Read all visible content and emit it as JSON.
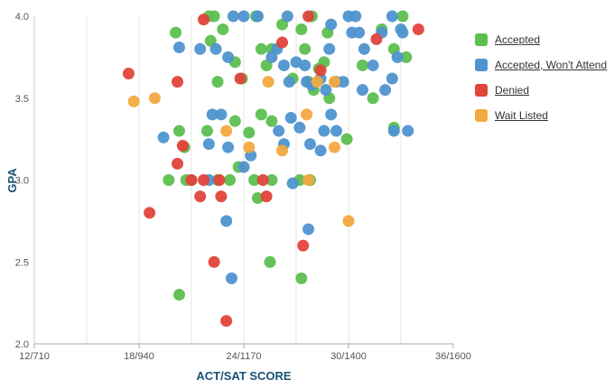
{
  "chart_data": {
    "type": "scatter",
    "xlabel": "ACT/SAT SCORE",
    "ylabel": "GPA",
    "x_ticks": [
      {
        "value": 12,
        "label": "12/710"
      },
      {
        "value": 18,
        "label": "18/940"
      },
      {
        "value": 24,
        "label": "24/1170"
      },
      {
        "value": 30,
        "label": "30/1400"
      },
      {
        "value": 36,
        "label": "36/1600"
      }
    ],
    "y_ticks": [
      {
        "value": 2.0,
        "label": "2.0"
      },
      {
        "value": 2.5,
        "label": "2.5"
      },
      {
        "value": 3.0,
        "label": "3.0"
      },
      {
        "value": 3.5,
        "label": "3.5"
      },
      {
        "value": 4.0,
        "label": "4.0"
      }
    ],
    "xlim": [
      12,
      36
    ],
    "ylim": [
      2.0,
      4.0
    ],
    "grid": "vertical",
    "legend_position": "right",
    "series": [
      {
        "name": "Accepted",
        "color": "#5cbf4f",
        "points": [
          [
            20.1,
            3.9
          ],
          [
            22.0,
            4.0
          ],
          [
            22.3,
            4.0
          ],
          [
            22.1,
            3.85
          ],
          [
            22.5,
            3.6
          ],
          [
            22.8,
            3.92
          ],
          [
            23.5,
            3.72
          ],
          [
            23.9,
            3.62
          ],
          [
            24.7,
            4.0
          ],
          [
            25.0,
            3.8
          ],
          [
            25.3,
            3.7
          ],
          [
            25.6,
            3.8
          ],
          [
            26.2,
            3.95
          ],
          [
            26.8,
            3.62
          ],
          [
            27.3,
            3.92
          ],
          [
            27.5,
            3.8
          ],
          [
            27.9,
            4.0
          ],
          [
            27.7,
            3.6
          ],
          [
            28.3,
            3.68
          ],
          [
            28.6,
            3.72
          ],
          [
            28.8,
            3.9
          ],
          [
            28.0,
            3.55
          ],
          [
            28.9,
            3.5
          ],
          [
            30.8,
            3.7
          ],
          [
            31.4,
            3.5
          ],
          [
            31.9,
            3.92
          ],
          [
            32.6,
            3.8
          ],
          [
            33.1,
            4.0
          ],
          [
            33.3,
            3.75
          ],
          [
            20.6,
            3.2
          ],
          [
            20.3,
            3.3
          ],
          [
            21.0,
            3.0
          ],
          [
            20.7,
            3.0
          ],
          [
            21.9,
            3.3
          ],
          [
            22.5,
            3.0
          ],
          [
            23.2,
            3.0
          ],
          [
            23.5,
            3.36
          ],
          [
            23.7,
            3.08
          ],
          [
            24.3,
            3.29
          ],
          [
            24.6,
            3.0
          ],
          [
            25.0,
            3.4
          ],
          [
            25.6,
            3.36
          ],
          [
            25.6,
            3.0
          ],
          [
            24.8,
            2.89
          ],
          [
            27.2,
            3.0
          ],
          [
            27.8,
            3.0
          ],
          [
            25.5,
            2.5
          ],
          [
            27.3,
            2.4
          ],
          [
            29.9,
            3.25
          ],
          [
            32.6,
            3.32
          ],
          [
            20.3,
            2.3
          ],
          [
            19.7,
            3.0
          ]
        ]
      },
      {
        "name": "Accepted, Won't Attend",
        "color": "#4f93cf",
        "points": [
          [
            20.3,
            3.81
          ],
          [
            21.5,
            3.8
          ],
          [
            22.4,
            3.8
          ],
          [
            23.1,
            3.75
          ],
          [
            23.4,
            4.0
          ],
          [
            24.0,
            4.0
          ],
          [
            24.8,
            4.0
          ],
          [
            25.6,
            3.75
          ],
          [
            25.9,
            3.8
          ],
          [
            26.3,
            3.7
          ],
          [
            26.6,
            3.6
          ],
          [
            27.0,
            3.72
          ],
          [
            27.5,
            3.7
          ],
          [
            26.5,
            4.0
          ],
          [
            27.6,
            3.6
          ],
          [
            27.9,
            3.58
          ],
          [
            28.4,
            3.62
          ],
          [
            28.7,
            3.55
          ],
          [
            28.9,
            3.8
          ],
          [
            29.0,
            3.95
          ],
          [
            29.3,
            3.6
          ],
          [
            29.7,
            3.6
          ],
          [
            30.0,
            4.0
          ],
          [
            30.2,
            3.9
          ],
          [
            30.6,
            3.9
          ],
          [
            30.9,
            3.8
          ],
          [
            31.4,
            3.7
          ],
          [
            31.9,
            3.9
          ],
          [
            32.1,
            3.55
          ],
          [
            32.5,
            3.62
          ],
          [
            32.8,
            3.75
          ],
          [
            33.0,
            3.92
          ],
          [
            33.1,
            3.9
          ],
          [
            32.5,
            4.0
          ],
          [
            30.4,
            4.0
          ],
          [
            30.8,
            3.55
          ],
          [
            19.4,
            3.26
          ],
          [
            22.0,
            3.22
          ],
          [
            22.2,
            3.4
          ],
          [
            22.7,
            3.4
          ],
          [
            23.1,
            3.2
          ],
          [
            24.0,
            3.08
          ],
          [
            24.4,
            3.15
          ],
          [
            26.0,
            3.3
          ],
          [
            26.3,
            3.22
          ],
          [
            26.7,
            3.38
          ],
          [
            27.2,
            3.32
          ],
          [
            27.8,
            3.22
          ],
          [
            28.6,
            3.3
          ],
          [
            28.4,
            3.18
          ],
          [
            29.0,
            3.4
          ],
          [
            29.3,
            3.3
          ],
          [
            32.6,
            3.3
          ],
          [
            33.4,
            3.3
          ],
          [
            22.0,
            3.0
          ],
          [
            26.8,
            2.98
          ],
          [
            23.0,
            2.75
          ],
          [
            23.3,
            2.4
          ],
          [
            27.7,
            2.7
          ]
        ]
      },
      {
        "name": "Denied",
        "color": "#e2433b",
        "points": [
          [
            17.4,
            3.65
          ],
          [
            20.2,
            3.6
          ],
          [
            21.7,
            3.98
          ],
          [
            23.8,
            3.62
          ],
          [
            26.2,
            3.84
          ],
          [
            27.7,
            4.0
          ],
          [
            28.4,
            3.67
          ],
          [
            31.6,
            3.86
          ],
          [
            34.0,
            3.92
          ],
          [
            20.5,
            3.21
          ],
          [
            20.2,
            3.1
          ],
          [
            21.0,
            3.0
          ],
          [
            21.7,
            3.0
          ],
          [
            21.5,
            2.9
          ],
          [
            22.6,
            3.0
          ],
          [
            22.7,
            2.9
          ],
          [
            25.1,
            3.0
          ],
          [
            25.3,
            2.9
          ],
          [
            18.6,
            2.8
          ],
          [
            22.3,
            2.5
          ],
          [
            23.0,
            2.14
          ],
          [
            27.4,
            2.6
          ]
        ]
      },
      {
        "name": "Wait Listed",
        "color": "#f2a93f",
        "points": [
          [
            17.7,
            3.48
          ],
          [
            18.9,
            3.5
          ],
          [
            25.4,
            3.6
          ],
          [
            28.2,
            3.6
          ],
          [
            29.2,
            3.6
          ],
          [
            23.0,
            3.3
          ],
          [
            24.3,
            3.2
          ],
          [
            26.2,
            3.18
          ],
          [
            27.6,
            3.4
          ],
          [
            29.2,
            3.2
          ],
          [
            27.7,
            3.0
          ],
          [
            30.0,
            2.75
          ]
        ]
      }
    ]
  },
  "legend": {
    "items": [
      {
        "label": "Accepted",
        "color": "#5cbf4f"
      },
      {
        "label": "Accepted, Won't Attend",
        "color": "#4f93cf"
      },
      {
        "label": "Denied",
        "color": "#e2433b"
      },
      {
        "label": "Wait Listed",
        "color": "#f2a93f"
      }
    ]
  }
}
